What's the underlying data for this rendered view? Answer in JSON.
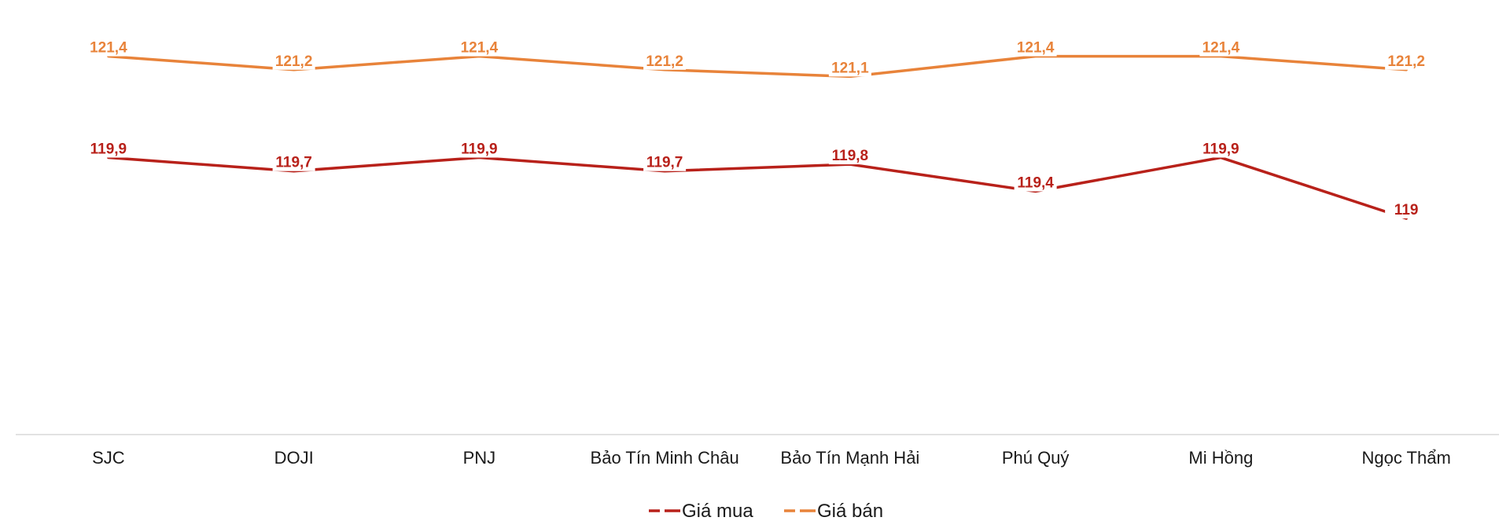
{
  "chart_data": {
    "type": "line",
    "title": "",
    "xlabel": "",
    "ylabel": "",
    "categories": [
      "SJC",
      "DOJI",
      "PNJ",
      "Bảo Tín Minh Châu",
      "Bảo Tín Mạnh Hải",
      "Phú Quý",
      "Mi Hồng",
      "Ngọc Thẩm"
    ],
    "series": [
      {
        "name": "Giá mua",
        "color": "#B8211A",
        "values": [
          119.9,
          119.7,
          119.9,
          119.7,
          119.8,
          119.4,
          119.9,
          119.0
        ],
        "labels": [
          "119,9",
          "119,7",
          "119,9",
          "119,7",
          "119,8",
          "119,4",
          "119,9",
          "119"
        ]
      },
      {
        "name": "Giá bán",
        "color": "#E8833A",
        "values": [
          121.4,
          121.2,
          121.4,
          121.2,
          121.1,
          121.4,
          121.4,
          121.2
        ],
        "labels": [
          "121,4",
          "121,2",
          "121,4",
          "121,2",
          "121,1",
          "121,4",
          "121,4",
          "121,2"
        ]
      }
    ],
    "ylim": [
      115.8,
      122.0
    ],
    "grid": false,
    "legend_position": "bottom-center"
  },
  "axis_color": "#D9D9D9",
  "text_color": "#1a1a1a"
}
